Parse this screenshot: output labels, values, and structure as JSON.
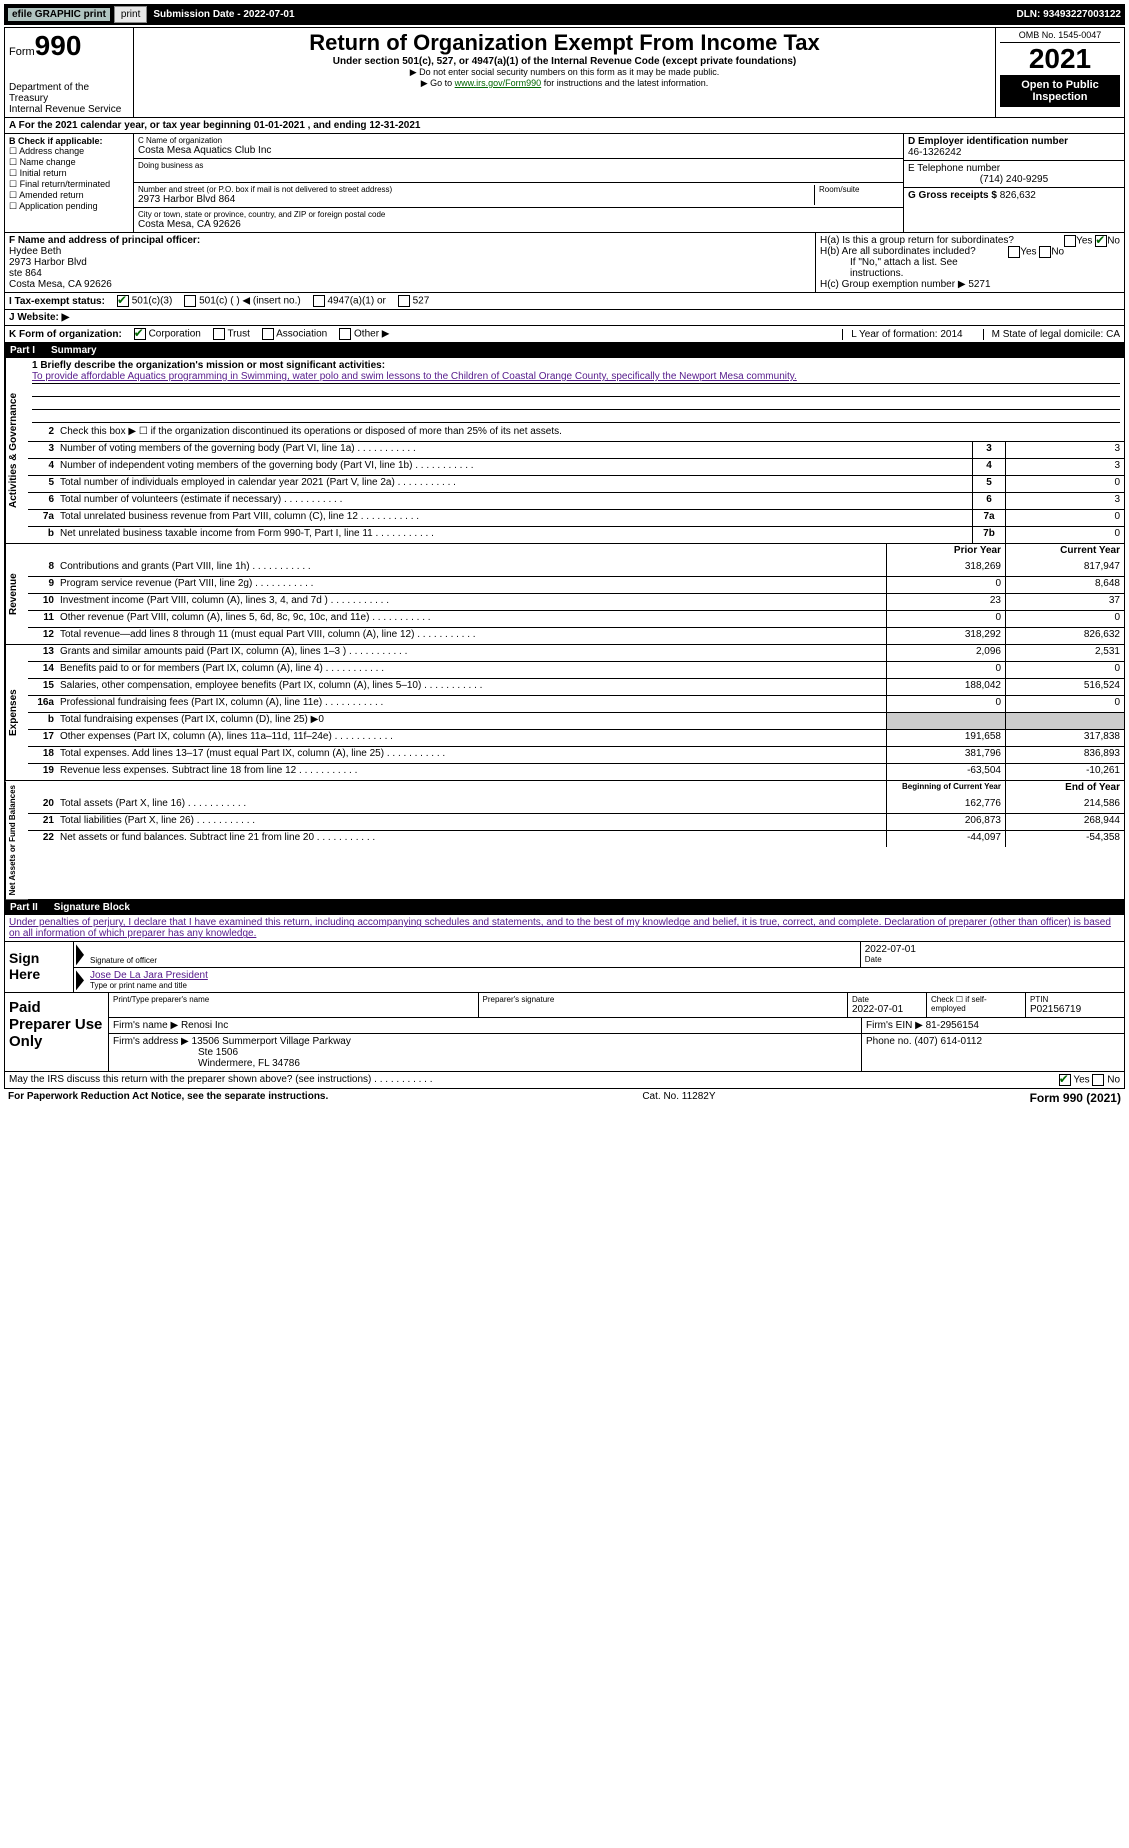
{
  "top": {
    "efile": "efile GRAPHIC print",
    "submission": "Submission Date - 2022-07-01",
    "dln": "DLN: 93493227003122"
  },
  "header": {
    "form_label_prefix": "Form",
    "form_label_big": "990",
    "title": "Return of Organization Exempt From Income Tax",
    "subtitle": "Under section 501(c), 527, or 4947(a)(1) of the Internal Revenue Code (except private foundations)",
    "note1": "▶ Do not enter social security numbers on this form as it may be made public.",
    "note2_prefix": "▶ Go to ",
    "note2_link": "www.irs.gov/Form990",
    "note2_suffix": " for instructions and the latest information.",
    "dept": "Department of the Treasury",
    "irs": "Internal Revenue Service",
    "omb": "OMB No. 1545-0047",
    "year": "2021",
    "open": "Open to Public Inspection"
  },
  "a": "A For the 2021 calendar year, or tax year beginning 01-01-2021    , and ending 12-31-2021",
  "b": {
    "heading": "B Check if applicable:",
    "items": [
      "Address change",
      "Name change",
      "Initial return",
      "Final return/terminated",
      "Amended return",
      "Application pending"
    ]
  },
  "c": {
    "name_label": "C Name of organization",
    "name": "Costa Mesa Aquatics Club Inc",
    "dba_label": "Doing business as",
    "addr_label": "Number and street (or P.O. box if mail is not delivered to street address)",
    "room_label": "Room/suite",
    "addr": "2973 Harbor Blvd 864",
    "city_label": "City or town, state or province, country, and ZIP or foreign postal code",
    "city": "Costa Mesa, CA  92626"
  },
  "d": {
    "ein_label": "D Employer identification number",
    "ein": "46-1326242",
    "phone_label": "E Telephone number",
    "phone": "(714) 240-9295",
    "gross_label": "G Gross receipts $",
    "gross": "826,632"
  },
  "f": {
    "label": "F  Name and address of principal officer:",
    "name": "Hydee Beth",
    "l1": "2973 Harbor Blvd",
    "l2": "ste 864",
    "l3": "Costa Mesa, CA  92626"
  },
  "h": {
    "a_label": "H(a)  Is this a group return for subordinates?",
    "b_label": "H(b)  Are all subordinates included?",
    "b_note": "If \"No,\" attach a list. See instructions.",
    "c_label": "H(c)  Group exemption number ▶",
    "c_val": "5271"
  },
  "i": {
    "label": "I    Tax-exempt status:",
    "o1": "501(c)(3)",
    "o2": "501(c) (   ) ◀ (insert no.)",
    "o3": "4947(a)(1) or",
    "o4": "527"
  },
  "j": {
    "label": "J   Website: ▶"
  },
  "k": {
    "label": "K Form of organization:",
    "o1": "Corporation",
    "o2": "Trust",
    "o3": "Association",
    "o4": "Other ▶",
    "l": "L Year of formation: 2014",
    "m": "M State of legal domicile: CA"
  },
  "part1": {
    "label": "Part I",
    "title": "Summary"
  },
  "mission": {
    "label": "1   Briefly describe the organization's mission or most significant activities:",
    "text": "To provide affordable Aquatics programming in Swimming, water polo and swim lessons to the Children of Coastal Orange County, specifically the Newport Mesa community."
  },
  "gov_lines": [
    {
      "n": "2",
      "d": "Check this box ▶ ☐ if the organization discontinued its operations or disposed of more than 25% of its net assets."
    },
    {
      "n": "3",
      "d": "Number of voting members of the governing body (Part VI, line 1a)",
      "box": "3",
      "v": "3"
    },
    {
      "n": "4",
      "d": "Number of independent voting members of the governing body (Part VI, line 1b)",
      "box": "4",
      "v": "3"
    },
    {
      "n": "5",
      "d": "Total number of individuals employed in calendar year 2021 (Part V, line 2a)",
      "box": "5",
      "v": "0"
    },
    {
      "n": "6",
      "d": "Total number of volunteers (estimate if necessary)",
      "box": "6",
      "v": "3"
    },
    {
      "n": "7a",
      "d": "Total unrelated business revenue from Part VIII, column (C), line 12",
      "box": "7a",
      "v": "0"
    },
    {
      "n": "b",
      "d": "Net unrelated business taxable income from Form 990-T, Part I, line 11",
      "box": "7b",
      "v": "0"
    }
  ],
  "cols": {
    "prior": "Prior Year",
    "current": "Current Year"
  },
  "revenue": [
    {
      "n": "8",
      "d": "Contributions and grants (Part VIII, line 1h)",
      "p": "318,269",
      "c": "817,947"
    },
    {
      "n": "9",
      "d": "Program service revenue (Part VIII, line 2g)",
      "p": "0",
      "c": "8,648"
    },
    {
      "n": "10",
      "d": "Investment income (Part VIII, column (A), lines 3, 4, and 7d )",
      "p": "23",
      "c": "37"
    },
    {
      "n": "11",
      "d": "Other revenue (Part VIII, column (A), lines 5, 6d, 8c, 9c, 10c, and 11e)",
      "p": "0",
      "c": "0"
    },
    {
      "n": "12",
      "d": "Total revenue—add lines 8 through 11 (must equal Part VIII, column (A), line 12)",
      "p": "318,292",
      "c": "826,632"
    }
  ],
  "expenses": [
    {
      "n": "13",
      "d": "Grants and similar amounts paid (Part IX, column (A), lines 1–3 )",
      "p": "2,096",
      "c": "2,531"
    },
    {
      "n": "14",
      "d": "Benefits paid to or for members (Part IX, column (A), line 4)",
      "p": "0",
      "c": "0"
    },
    {
      "n": "15",
      "d": "Salaries, other compensation, employee benefits (Part IX, column (A), lines 5–10)",
      "p": "188,042",
      "c": "516,524"
    },
    {
      "n": "16a",
      "d": "Professional fundraising fees (Part IX, column (A), line 11e)",
      "p": "0",
      "c": "0"
    },
    {
      "n": "b",
      "d": "Total fundraising expenses (Part IX, column (D), line 25) ▶0",
      "shaded": true
    },
    {
      "n": "17",
      "d": "Other expenses (Part IX, column (A), lines 11a–11d, 11f–24e)",
      "p": "191,658",
      "c": "317,838"
    },
    {
      "n": "18",
      "d": "Total expenses. Add lines 13–17 (must equal Part IX, column (A), line 25)",
      "p": "381,796",
      "c": "836,893"
    },
    {
      "n": "19",
      "d": "Revenue less expenses. Subtract line 18 from line 12",
      "p": "-63,504",
      "c": "-10,261"
    }
  ],
  "cols2": {
    "begin": "Beginning of Current Year",
    "end": "End of Year"
  },
  "netassets": [
    {
      "n": "20",
      "d": "Total assets (Part X, line 16)",
      "p": "162,776",
      "c": "214,586"
    },
    {
      "n": "21",
      "d": "Total liabilities (Part X, line 26)",
      "p": "206,873",
      "c": "268,944"
    },
    {
      "n": "22",
      "d": "Net assets or fund balances. Subtract line 21 from line 20",
      "p": "-44,097",
      "c": "-54,358"
    }
  ],
  "part2": {
    "label": "Part II",
    "title": "Signature Block"
  },
  "penalties": "Under penalties of perjury, I declare that I have examined this return, including accompanying schedules and statements, and to the best of my knowledge and belief, it is true, correct, and complete. Declaration of preparer (other than officer) is based on all information of which preparer has any knowledge.",
  "sign": {
    "left": "Sign Here",
    "date": "2022-07-01",
    "sig_label": "Signature of officer",
    "date_label": "Date",
    "officer": "Jose De La Jara  President",
    "type_label": "Type or print name and title"
  },
  "prep": {
    "left": "Paid Preparer Use Only",
    "name_label": "Print/Type preparer's name",
    "sig_label": "Preparer's signature",
    "date_label": "Date",
    "date": "2022-07-01",
    "check_label": "Check ☐ if self-employed",
    "ptin_label": "PTIN",
    "ptin": "P02156719",
    "firm_label": "Firm's name     ▶",
    "firm": "Renosi Inc",
    "ein_label": "Firm's EIN ▶",
    "ein": "81-2956154",
    "addr_label": "Firm's address ▶",
    "addr1": "13506 Summerport Village Parkway",
    "addr2": "Ste 1506",
    "addr3": "Windermere, FL  34786",
    "phone_label": "Phone no.",
    "phone": "(407) 614-0112"
  },
  "discuss": "May the IRS discuss this return with the preparer shown above? (see instructions)",
  "footer": {
    "left": "For Paperwork Reduction Act Notice, see the separate instructions.",
    "cat": "Cat. No. 11282Y",
    "right": "Form 990 (2021)"
  },
  "vert_labels": {
    "gov": "Activities & Governance",
    "rev": "Revenue",
    "exp": "Expenses",
    "net": "Net Assets or Fund Balances"
  }
}
